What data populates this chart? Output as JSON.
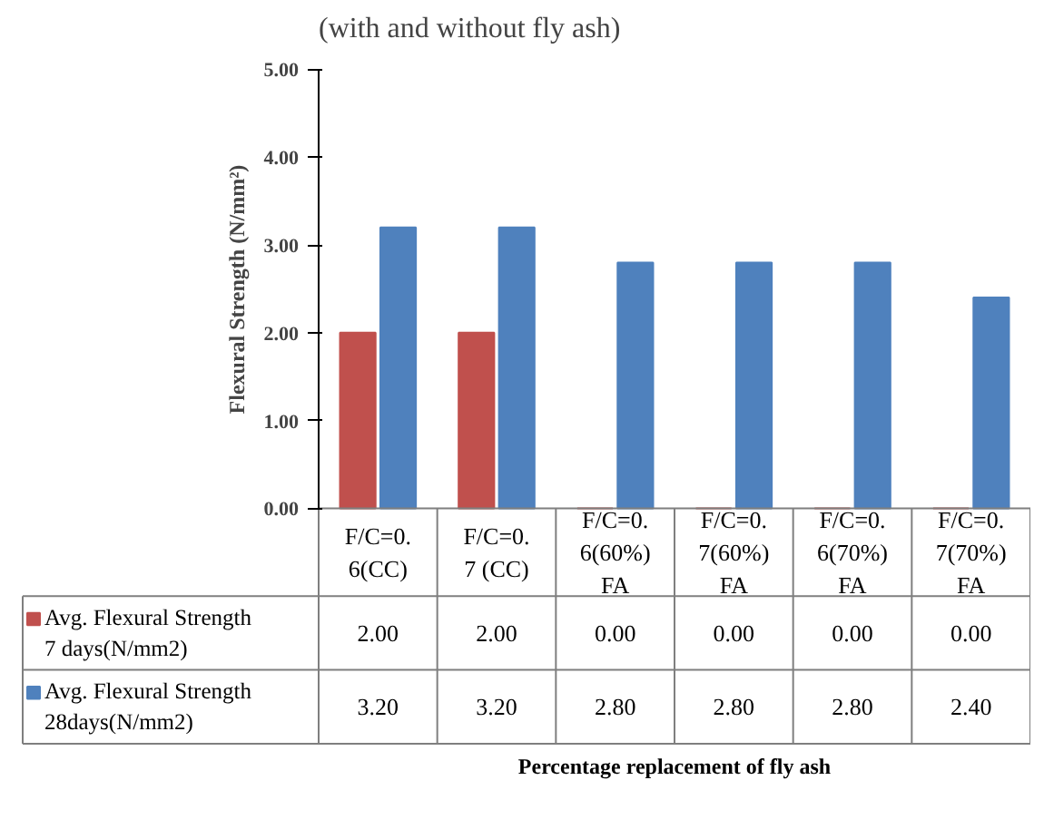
{
  "chart_data": {
    "type": "bar",
    "title": "(with and without fly ash)",
    "annotations": [
      "Percentage replacement of fly ash"
    ],
    "ylabel": "Flexural Strength (N/mm²)",
    "categories": [
      "F/C=0.6(CC)",
      "F/C=0.7 (CC)",
      "F/C=0.6(60%)FA",
      "F/C=0.7(60%) FA",
      "F/C=0.6(70%) FA",
      "F/C=0.7(70%) FA"
    ],
    "series": [
      {
        "name": "Avg. Flexural Strength 7 days(N/mm2)",
        "color": "#c0504d",
        "values": [
          2.0,
          2.0,
          0.0,
          0.0,
          0.0,
          0.0
        ],
        "value_labels": [
          "2.00",
          "2.00",
          "0.00",
          "0.00",
          "0.00",
          "0.00"
        ]
      },
      {
        "name": "Avg. Flexural Strength 28days(N/mm2)",
        "color": "#4f81bd",
        "values": [
          3.2,
          3.2,
          2.8,
          2.8,
          2.8,
          2.4
        ],
        "value_labels": [
          "3.20",
          "3.20",
          "2.80",
          "2.80",
          "2.80",
          "2.40"
        ]
      }
    ],
    "ylim": [
      0,
      5
    ],
    "yticks": [
      {
        "value": 0,
        "label": "0.00"
      },
      {
        "value": 1,
        "label": "1.00"
      },
      {
        "value": 2,
        "label": "2.00"
      },
      {
        "value": 3,
        "label": "3.00"
      },
      {
        "value": 4,
        "label": "4.00"
      },
      {
        "value": 5,
        "label": "5.00"
      }
    ],
    "grid": false,
    "legend": "bottom left"
  }
}
